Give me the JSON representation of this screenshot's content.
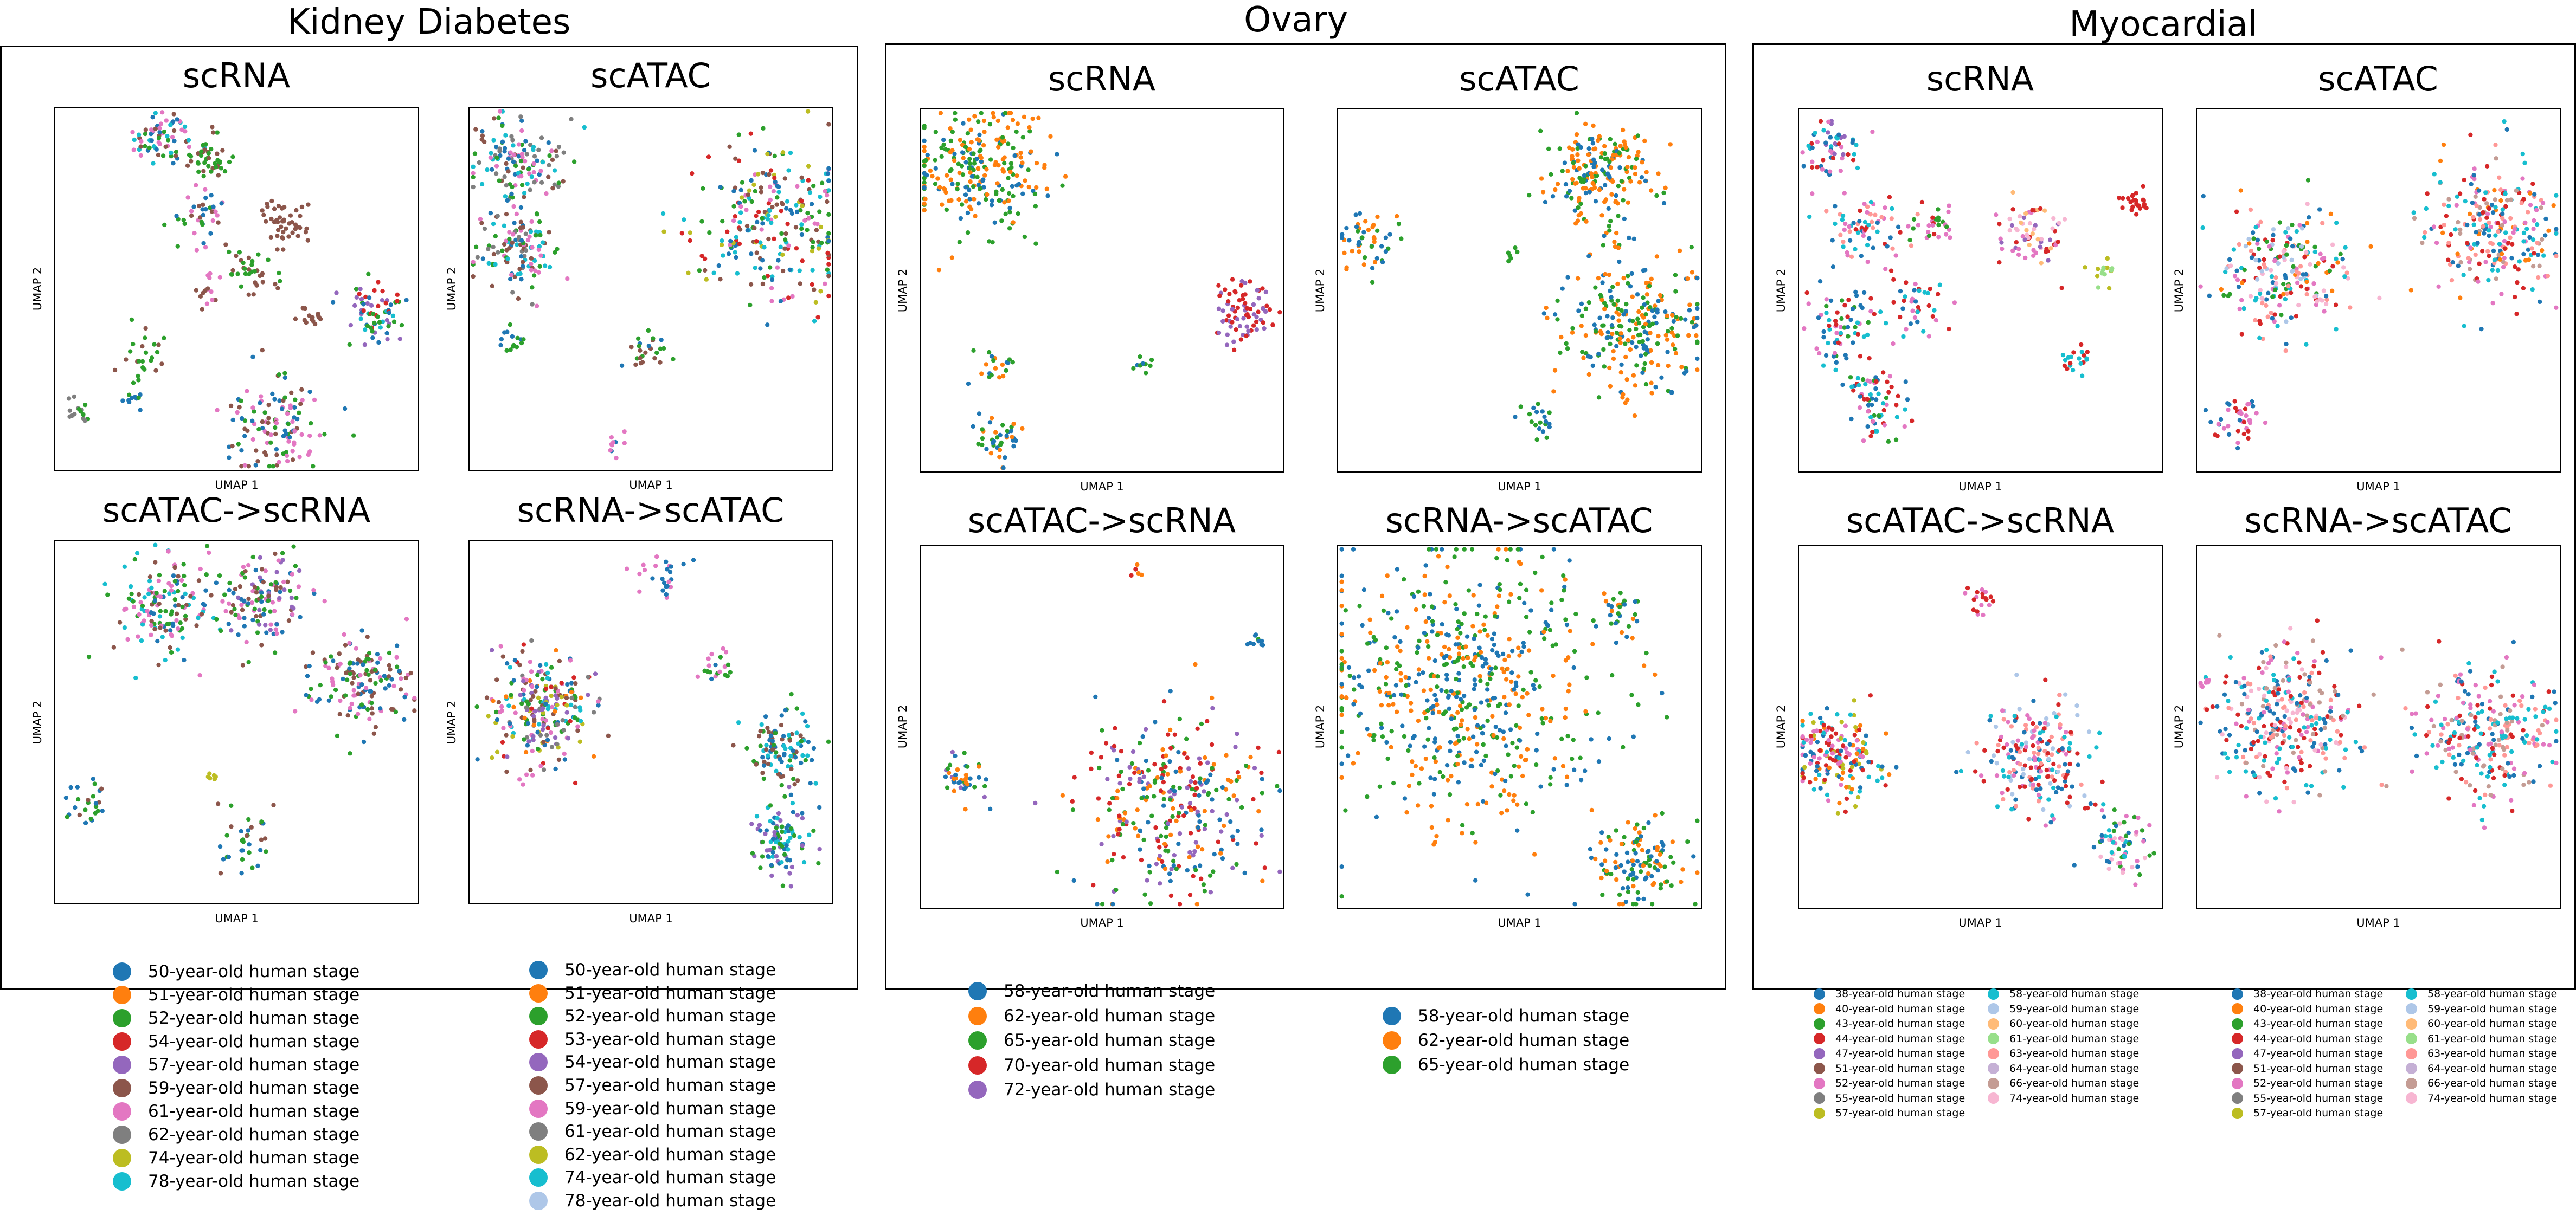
{
  "colors": {
    "c1": "#1f77b4",
    "c2": "#ff7f0e",
    "c3": "#2ca02c",
    "c4": "#d62728",
    "c5": "#9467bd",
    "c6": "#8c564b",
    "c7": "#e377c2",
    "c8": "#7f7f7f",
    "c9": "#bcbd22",
    "c10": "#17becf",
    "c11": "#aec7e8",
    "c12": "#ffbb78",
    "c13": "#98df8a",
    "c14": "#ff9896",
    "c15": "#c5b0d5",
    "c16": "#c49c94",
    "c17": "#f7b6d2",
    "c18": "#dbdb8d"
  },
  "axis_labels": {
    "x": "UMAP 1",
    "y": "UMAP 2"
  },
  "groups": [
    {
      "title": "Kidney Diabetes",
      "panel_titles": [
        "scRNA",
        "scATAC",
        "scATAC->scRNA",
        "scRNA->scATAC"
      ],
      "legends": [
        [
          "50-year-old human stage",
          "51-year-old human stage",
          "52-year-old human stage",
          "54-year-old human stage",
          "57-year-old human stage",
          "59-year-old human stage",
          "61-year-old human stage",
          "62-year-old human stage",
          "74-year-old human stage",
          "78-year-old human stage"
        ],
        [
          "50-year-old human stage",
          "51-year-old human stage",
          "52-year-old human stage",
          "53-year-old human stage",
          "54-year-old human stage",
          "57-year-old human stage",
          "59-year-old human stage",
          "61-year-old human stage",
          "62-year-old human stage",
          "74-year-old human stage",
          "78-year-old human stage"
        ]
      ]
    },
    {
      "title": "Ovary",
      "panel_titles": [
        "scRNA",
        "scATAC",
        "scATAC->scRNA",
        "scRNA->scATAC"
      ],
      "legends": [
        [
          "58-year-old human stage",
          "62-year-old human stage",
          "65-year-old human stage",
          "70-year-old human stage",
          "72-year-old human stage"
        ],
        [
          "58-year-old human stage",
          "62-year-old human stage",
          "65-year-old human stage"
        ]
      ]
    },
    {
      "title": "Myocardial",
      "panel_titles": [
        "scRNA",
        "scATAC",
        "scATAC->scRNA",
        "scRNA->scATAC"
      ],
      "legends": [
        [
          "38-year-old human stage",
          "40-year-old human stage",
          "43-year-old human stage",
          "44-year-old human stage",
          "47-year-old human stage",
          "51-year-old human stage",
          "52-year-old human stage",
          "55-year-old human stage",
          "57-year-old human stage",
          "58-year-old human stage",
          "59-year-old human stage",
          "60-year-old human stage",
          "61-year-old human stage",
          "63-year-old human stage",
          "64-year-old human stage",
          "66-year-old human stage",
          "74-year-old human stage"
        ],
        [
          "38-year-old human stage",
          "40-year-old human stage",
          "43-year-old human stage",
          "44-year-old human stage",
          "47-year-old human stage",
          "51-year-old human stage",
          "52-year-old human stage",
          "55-year-old human stage",
          "57-year-old human stage",
          "58-year-old human stage",
          "59-year-old human stage",
          "60-year-old human stage",
          "61-year-old human stage",
          "63-year-old human stage",
          "64-year-old human stage",
          "66-year-old human stage",
          "74-year-old human stage"
        ]
      ]
    }
  ],
  "chart_data": [
    {
      "type": "scatter",
      "group": "Kidney Diabetes",
      "title": "scRNA",
      "xlabel": "UMAP 1",
      "ylabel": "UMAP 2",
      "grid": false,
      "clusters": [
        {
          "x": 0.3,
          "y": 0.92,
          "spread": 0.04,
          "n": 70,
          "palette": [
            "c1",
            "c3",
            "c6",
            "c7",
            "c10"
          ]
        },
        {
          "x": 0.42,
          "y": 0.86,
          "spread": 0.03,
          "n": 40,
          "palette": [
            "c6",
            "c3"
          ]
        },
        {
          "x": 0.64,
          "y": 0.69,
          "spread": 0.04,
          "n": 45,
          "palette": [
            "c6"
          ]
        },
        {
          "x": 0.4,
          "y": 0.71,
          "spread": 0.04,
          "n": 40,
          "palette": [
            "c1",
            "c3",
            "c6",
            "c7"
          ]
        },
        {
          "x": 0.54,
          "y": 0.55,
          "spread": 0.03,
          "n": 35,
          "palette": [
            "c6",
            "c3"
          ]
        },
        {
          "x": 0.42,
          "y": 0.49,
          "spread": 0.02,
          "n": 15,
          "palette": [
            "c6",
            "c7"
          ]
        },
        {
          "x": 0.72,
          "y": 0.43,
          "spread": 0.02,
          "n": 15,
          "palette": [
            "c6"
          ]
        },
        {
          "x": 0.89,
          "y": 0.43,
          "spread": 0.04,
          "n": 70,
          "palette": [
            "c1",
            "c4",
            "c5",
            "c10",
            "c3"
          ]
        },
        {
          "x": 0.24,
          "y": 0.31,
          "spread": 0.03,
          "n": 25,
          "palette": [
            "c3",
            "c6"
          ]
        },
        {
          "x": 0.21,
          "y": 0.19,
          "spread": 0.015,
          "n": 10,
          "palette": [
            "c1",
            "c3"
          ]
        },
        {
          "x": 0.06,
          "y": 0.16,
          "spread": 0.02,
          "n": 15,
          "palette": [
            "c8",
            "c3"
          ]
        },
        {
          "x": 0.6,
          "y": 0.12,
          "spread": 0.07,
          "n": 120,
          "palette": [
            "c6",
            "c3",
            "c7",
            "c1"
          ]
        }
      ]
    },
    {
      "type": "scatter",
      "group": "Kidney Diabetes",
      "title": "scATAC",
      "xlabel": "UMAP 1",
      "ylabel": "UMAP 2",
      "grid": false,
      "clusters": [
        {
          "x": 0.13,
          "y": 0.85,
          "spread": 0.06,
          "n": 140,
          "palette": [
            "c1",
            "c3",
            "c6",
            "c8",
            "c10",
            "c7"
          ]
        },
        {
          "x": 0.13,
          "y": 0.61,
          "spread": 0.06,
          "n": 120,
          "palette": [
            "c1",
            "c3",
            "c6",
            "c8",
            "c10",
            "c7"
          ]
        },
        {
          "x": 0.84,
          "y": 0.69,
          "spread": 0.11,
          "n": 260,
          "palette": [
            "c1",
            "c3",
            "c6",
            "c7",
            "c4",
            "c10",
            "c9"
          ]
        },
        {
          "x": 0.12,
          "y": 0.36,
          "spread": 0.02,
          "n": 15,
          "palette": [
            "c1",
            "c3"
          ]
        },
        {
          "x": 0.49,
          "y": 0.34,
          "spread": 0.03,
          "n": 25,
          "palette": [
            "c1",
            "c3",
            "c6"
          ]
        },
        {
          "x": 0.4,
          "y": 0.07,
          "spread": 0.015,
          "n": 10,
          "palette": [
            "c1",
            "c7"
          ]
        }
      ]
    },
    {
      "type": "scatter",
      "group": "Kidney Diabetes",
      "title": "scATAC->scRNA",
      "xlabel": "UMAP 1",
      "ylabel": "UMAP 2",
      "grid": false,
      "clusters": [
        {
          "x": 0.3,
          "y": 0.81,
          "spread": 0.07,
          "n": 150,
          "palette": [
            "c6",
            "c3",
            "c7",
            "c1",
            "c10"
          ]
        },
        {
          "x": 0.57,
          "y": 0.84,
          "spread": 0.06,
          "n": 130,
          "palette": [
            "c6",
            "c3",
            "c5",
            "c7",
            "c1"
          ]
        },
        {
          "x": 0.84,
          "y": 0.61,
          "spread": 0.07,
          "n": 150,
          "palette": [
            "c6",
            "c3",
            "c7",
            "c1"
          ]
        },
        {
          "x": 0.43,
          "y": 0.35,
          "spread": 0.01,
          "n": 6,
          "palette": [
            "c9"
          ]
        },
        {
          "x": 0.09,
          "y": 0.27,
          "spread": 0.03,
          "n": 25,
          "palette": [
            "c6",
            "c1",
            "c3"
          ]
        },
        {
          "x": 0.53,
          "y": 0.16,
          "spread": 0.04,
          "n": 35,
          "palette": [
            "c6",
            "c3",
            "c1"
          ]
        }
      ]
    },
    {
      "type": "scatter",
      "group": "Kidney Diabetes",
      "title": "scRNA->scATAC",
      "xlabel": "UMAP 1",
      "ylabel": "UMAP 2",
      "grid": false,
      "clusters": [
        {
          "x": 0.2,
          "y": 0.54,
          "spread": 0.08,
          "n": 260,
          "palette": [
            "c1",
            "c2",
            "c3",
            "c4",
            "c5",
            "c6",
            "c7",
            "c8",
            "c9",
            "c10"
          ]
        },
        {
          "x": 0.53,
          "y": 0.91,
          "spread": 0.03,
          "n": 25,
          "palette": [
            "c1",
            "c7"
          ]
        },
        {
          "x": 0.68,
          "y": 0.65,
          "spread": 0.02,
          "n": 20,
          "palette": [
            "c1",
            "c3",
            "c7"
          ]
        },
        {
          "x": 0.85,
          "y": 0.42,
          "spread": 0.05,
          "n": 110,
          "palette": [
            "c1",
            "c3",
            "c10",
            "c6"
          ]
        },
        {
          "x": 0.86,
          "y": 0.17,
          "spread": 0.05,
          "n": 100,
          "palette": [
            "c1",
            "c3",
            "c10",
            "c5"
          ]
        }
      ]
    },
    {
      "type": "scatter",
      "group": "Ovary",
      "title": "scRNA",
      "xlabel": "UMAP 1",
      "ylabel": "UMAP 2",
      "grid": false,
      "clusters": [
        {
          "x": 0.16,
          "y": 0.83,
          "spread": 0.09,
          "n": 260,
          "palette": [
            "c2",
            "c2",
            "c3",
            "c1",
            "c3"
          ]
        },
        {
          "x": 0.89,
          "y": 0.44,
          "spread": 0.04,
          "n": 80,
          "palette": [
            "c5",
            "c4"
          ]
        },
        {
          "x": 0.21,
          "y": 0.29,
          "spread": 0.03,
          "n": 20,
          "palette": [
            "c1",
            "c3",
            "c2"
          ]
        },
        {
          "x": 0.61,
          "y": 0.29,
          "spread": 0.015,
          "n": 10,
          "palette": [
            "c3",
            "c1"
          ]
        },
        {
          "x": 0.22,
          "y": 0.09,
          "spread": 0.03,
          "n": 40,
          "palette": [
            "c1",
            "c2",
            "c3"
          ]
        }
      ]
    },
    {
      "type": "scatter",
      "group": "Ovary",
      "title": "scATAC",
      "xlabel": "UMAP 1",
      "ylabel": "UMAP 2",
      "grid": false,
      "clusters": [
        {
          "x": 0.72,
          "y": 0.82,
          "spread": 0.07,
          "n": 200,
          "palette": [
            "c2",
            "c3",
            "c2",
            "c1"
          ]
        },
        {
          "x": 0.82,
          "y": 0.4,
          "spread": 0.1,
          "n": 260,
          "palette": [
            "c1",
            "c3",
            "c2"
          ]
        },
        {
          "x": 0.08,
          "y": 0.64,
          "spread": 0.04,
          "n": 50,
          "palette": [
            "c1",
            "c2",
            "c3"
          ]
        },
        {
          "x": 0.48,
          "y": 0.6,
          "spread": 0.01,
          "n": 6,
          "palette": [
            "c3"
          ]
        },
        {
          "x": 0.55,
          "y": 0.14,
          "spread": 0.03,
          "n": 20,
          "palette": [
            "c1",
            "c3"
          ]
        }
      ]
    },
    {
      "type": "scatter",
      "group": "Ovary",
      "title": "scATAC->scRNA",
      "xlabel": "UMAP 1",
      "ylabel": "UMAP 2",
      "grid": false,
      "clusters": [
        {
          "x": 0.69,
          "y": 0.28,
          "spread": 0.12,
          "n": 320,
          "palette": [
            "c1",
            "c2",
            "c3",
            "c4",
            "c5"
          ]
        },
        {
          "x": 0.11,
          "y": 0.36,
          "spread": 0.035,
          "n": 45,
          "palette": [
            "c1",
            "c2",
            "c3",
            "c5"
          ]
        },
        {
          "x": 0.59,
          "y": 0.93,
          "spread": 0.01,
          "n": 5,
          "palette": [
            "c4",
            "c2"
          ]
        },
        {
          "x": 0.92,
          "y": 0.73,
          "spread": 0.015,
          "n": 10,
          "palette": [
            "c1",
            "c3"
          ]
        }
      ]
    },
    {
      "type": "scatter",
      "group": "Ovary",
      "title": "scRNA->scATAC",
      "xlabel": "UMAP 1",
      "ylabel": "UMAP 2",
      "grid": false,
      "clusters": [
        {
          "x": 0.35,
          "y": 0.62,
          "spread": 0.2,
          "n": 600,
          "palette": [
            "c1",
            "c2",
            "c3"
          ]
        },
        {
          "x": 0.84,
          "y": 0.13,
          "spread": 0.06,
          "n": 120,
          "palette": [
            "c1",
            "c2",
            "c3"
          ]
        },
        {
          "x": 0.77,
          "y": 0.8,
          "spread": 0.03,
          "n": 25,
          "palette": [
            "c1",
            "c2",
            "c3"
          ]
        }
      ]
    },
    {
      "type": "scatter",
      "group": "Myocardial",
      "title": "scRNA",
      "xlabel": "UMAP 1",
      "ylabel": "UMAP 2",
      "grid": false,
      "clusters": [
        {
          "x": 0.09,
          "y": 0.89,
          "spread": 0.04,
          "n": 60,
          "palette": [
            "c10",
            "c4",
            "c7",
            "c1",
            "c5"
          ]
        },
        {
          "x": 0.18,
          "y": 0.66,
          "spread": 0.05,
          "n": 70,
          "palette": [
            "c4",
            "c7",
            "c1",
            "c10",
            "c14"
          ]
        },
        {
          "x": 0.37,
          "y": 0.68,
          "spread": 0.03,
          "n": 30,
          "palette": [
            "c4",
            "c7",
            "c3"
          ]
        },
        {
          "x": 0.64,
          "y": 0.65,
          "spread": 0.05,
          "n": 70,
          "palette": [
            "c7",
            "c5",
            "c4",
            "c12",
            "c17"
          ]
        },
        {
          "x": 0.93,
          "y": 0.74,
          "spread": 0.02,
          "n": 25,
          "palette": [
            "c4"
          ]
        },
        {
          "x": 0.84,
          "y": 0.55,
          "spread": 0.015,
          "n": 15,
          "palette": [
            "c9",
            "c13"
          ]
        },
        {
          "x": 0.32,
          "y": 0.45,
          "spread": 0.04,
          "n": 40,
          "palette": [
            "c1",
            "c4",
            "c7",
            "c10"
          ]
        },
        {
          "x": 0.12,
          "y": 0.4,
          "spread": 0.05,
          "n": 70,
          "palette": [
            "c3",
            "c1",
            "c7",
            "c4",
            "c10"
          ]
        },
        {
          "x": 0.76,
          "y": 0.31,
          "spread": 0.02,
          "n": 20,
          "palette": [
            "c4",
            "c10"
          ]
        },
        {
          "x": 0.21,
          "y": 0.18,
          "spread": 0.05,
          "n": 70,
          "palette": [
            "c7",
            "c10",
            "c1",
            "c4",
            "c3"
          ]
        }
      ]
    },
    {
      "type": "scatter",
      "group": "Myocardial",
      "title": "scATAC",
      "xlabel": "UMAP 1",
      "ylabel": "UMAP 2",
      "grid": false,
      "clusters": [
        {
          "x": 0.25,
          "y": 0.55,
          "spread": 0.09,
          "n": 230,
          "palette": [
            "c1",
            "c2",
            "c3",
            "c4",
            "c7",
            "c10",
            "c11",
            "c14",
            "c17"
          ]
        },
        {
          "x": 0.83,
          "y": 0.67,
          "spread": 0.09,
          "n": 260,
          "palette": [
            "c4",
            "c1",
            "c2",
            "c7",
            "c10",
            "c14",
            "c16"
          ]
        },
        {
          "x": 0.11,
          "y": 0.14,
          "spread": 0.03,
          "n": 40,
          "palette": [
            "c4",
            "c7",
            "c1"
          ]
        }
      ]
    },
    {
      "type": "scatter",
      "group": "Myocardial",
      "title": "scATAC->scRNA",
      "xlabel": "UMAP 1",
      "ylabel": "UMAP 2",
      "grid": false,
      "clusters": [
        {
          "x": 0.1,
          "y": 0.42,
          "spread": 0.06,
          "n": 180,
          "palette": [
            "c4",
            "c7",
            "c10",
            "c9",
            "c2",
            "c1"
          ]
        },
        {
          "x": 0.5,
          "y": 0.85,
          "spread": 0.02,
          "n": 20,
          "palette": [
            "c4",
            "c7"
          ]
        },
        {
          "x": 0.65,
          "y": 0.42,
          "spread": 0.08,
          "n": 220,
          "palette": [
            "c4",
            "c7",
            "c1",
            "c10",
            "c14",
            "c11"
          ]
        },
        {
          "x": 0.89,
          "y": 0.18,
          "spread": 0.04,
          "n": 70,
          "palette": [
            "c1",
            "c7",
            "c10",
            "c3",
            "c17"
          ]
        }
      ]
    },
    {
      "type": "scatter",
      "group": "Myocardial",
      "title": "scRNA->scATAC",
      "xlabel": "UMAP 1",
      "ylabel": "UMAP 2",
      "grid": false,
      "clusters": [
        {
          "x": 0.25,
          "y": 0.52,
          "spread": 0.1,
          "n": 320,
          "palette": [
            "c4",
            "c7",
            "c1",
            "c10",
            "c14",
            "c17",
            "c16"
          ]
        },
        {
          "x": 0.8,
          "y": 0.48,
          "spread": 0.09,
          "n": 260,
          "palette": [
            "c4",
            "c7",
            "c1",
            "c10",
            "c14",
            "c16"
          ]
        },
        {
          "x": 0.03,
          "y": 0.62,
          "spread": 0.01,
          "n": 6,
          "palette": [
            "c7"
          ]
        }
      ]
    }
  ]
}
